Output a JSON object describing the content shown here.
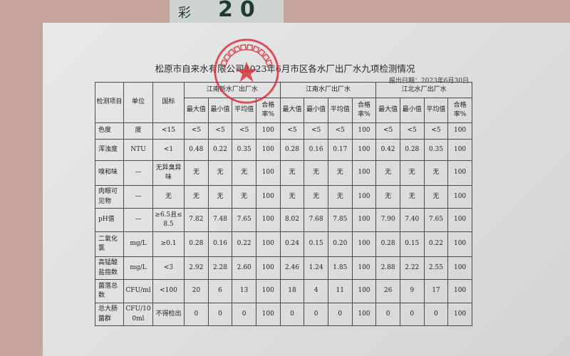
{
  "label_strip": {
    "char": "彩",
    "number": "20"
  },
  "title": "松原市自来水有限公司2023年6月市区各水厂出厂水九项检测情况",
  "report_date": "报出日期：2023年6月30日",
  "stamp": {
    "text": "松原市自来水有限公司",
    "color": "#d8323a"
  },
  "table": {
    "headers": {
      "item": "检测项目",
      "unit": "单位",
      "standard": "国标"
    },
    "plants": [
      "江南新水厂出厂水",
      "江南水厂出厂水",
      "江北水厂出厂水"
    ],
    "sub_headers": [
      "最大值",
      "最小值",
      "平均值",
      "合格率%"
    ],
    "rows": [
      {
        "item": "色度",
        "unit": "度",
        "standard": "<15",
        "values": [
          "<5",
          "<5",
          "<5",
          "100",
          "<5",
          "<5",
          "<5",
          "100",
          "<5",
          "<5",
          "<5",
          "100"
        ]
      },
      {
        "item": "浑浊度",
        "unit": "NTU",
        "standard": "<1",
        "values": [
          "0.48",
          "0.22",
          "0.35",
          "100",
          "0.28",
          "0.16",
          "0.17",
          "100",
          "0.42",
          "0.28",
          "0.35",
          "100"
        ]
      },
      {
        "item": "嗅和味",
        "unit": "—",
        "standard": "无异臭异味",
        "values": [
          "无",
          "无",
          "无",
          "100",
          "无",
          "无",
          "无",
          "100",
          "无",
          "无",
          "无",
          "100"
        ]
      },
      {
        "item": "肉眼可见物",
        "unit": "—",
        "standard": "无",
        "values": [
          "无",
          "无",
          "无",
          "100",
          "无",
          "无",
          "无",
          "100",
          "无",
          "无",
          "无",
          "100"
        ]
      },
      {
        "item": "pH值",
        "unit": "—",
        "standard": "≥6.5且≤8.5",
        "values": [
          "7.82",
          "7.48",
          "7.65",
          "100",
          "8.02",
          "7.68",
          "7.85",
          "100",
          "7.90",
          "7.40",
          "7.65",
          "100"
        ]
      },
      {
        "item": "二氧化氯",
        "unit": "mg/L",
        "standard": "≥0.1",
        "values": [
          "0.28",
          "0.16",
          "0.22",
          "100",
          "0.24",
          "0.15",
          "0.20",
          "100",
          "0.28",
          "0.15",
          "0.22",
          "100"
        ]
      },
      {
        "item": "高锰酸盐指数",
        "unit": "mg/L",
        "standard": "<3",
        "values": [
          "2.92",
          "2.28",
          "2.60",
          "100",
          "2.46",
          "1.24",
          "1.85",
          "100",
          "2.88",
          "2.22",
          "2.55",
          "100"
        ]
      },
      {
        "item": "菌落总数",
        "unit": "CFU/ml",
        "standard": "<100",
        "values": [
          "20",
          "6",
          "13",
          "100",
          "18",
          "4",
          "11",
          "100",
          "26",
          "9",
          "17",
          "100"
        ]
      },
      {
        "item": "总大肠菌群",
        "unit": "CFU/100ml",
        "standard": "不得检出",
        "values": [
          "0",
          "0",
          "0",
          "100",
          "0",
          "0",
          "0",
          "100",
          "0",
          "0",
          "0",
          "100"
        ]
      }
    ]
  }
}
